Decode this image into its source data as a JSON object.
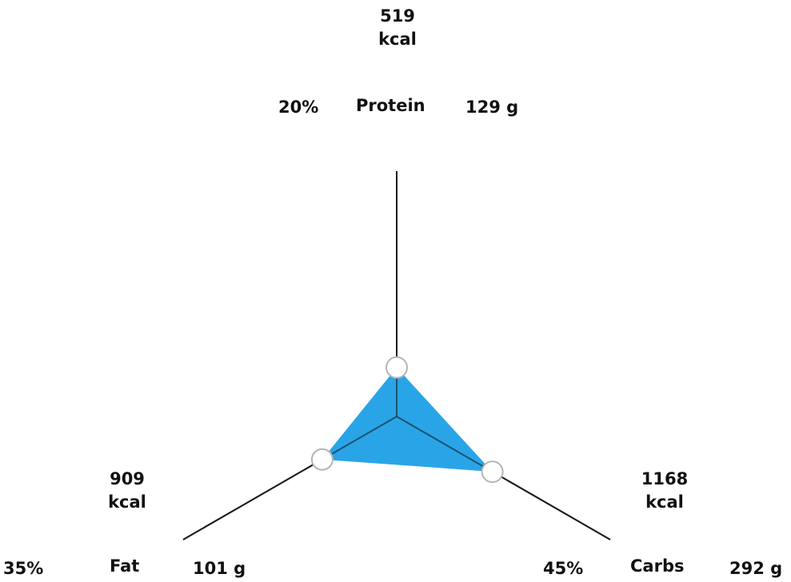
{
  "chart_data": {
    "type": "radar",
    "axes": [
      {
        "name": "Protein",
        "kcal": 519,
        "kcal_unit": "kcal",
        "percent": 20,
        "percent_label": "20%",
        "grams_label": "129 g",
        "name_label": "Protein",
        "kcal_value_label": "519",
        "kcal_unit_label": "kcal"
      },
      {
        "name": "Carbs",
        "kcal": 1168,
        "kcal_unit": "kcal",
        "percent": 45,
        "percent_label": "45%",
        "grams_label": "292 g",
        "name_label": "Carbs",
        "kcal_value_label": "1168",
        "kcal_unit_label": "kcal"
      },
      {
        "name": "Fat",
        "kcal": 909,
        "kcal_unit": "kcal",
        "percent": 35,
        "percent_label": "35%",
        "grams_label": "101 g",
        "name_label": "Fat",
        "kcal_value_label": "909",
        "kcal_unit_label": "kcal"
      }
    ],
    "values_percent": [
      20,
      45,
      35
    ],
    "fill_color": "#1ea0e6",
    "axis_color": "#1a1a1a",
    "marker_color": "#ffffff"
  }
}
